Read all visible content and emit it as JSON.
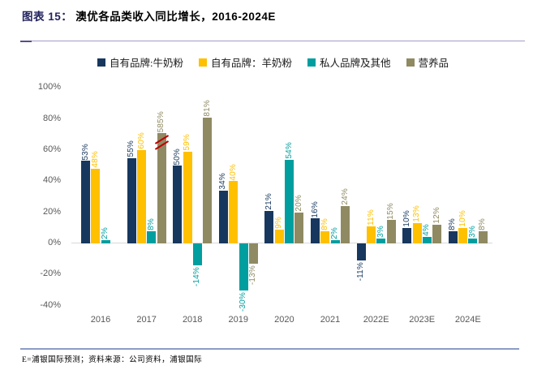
{
  "title": {
    "prefix": "图表 15：",
    "text": "澳优各品类收入同比增长，2016-2024E"
  },
  "legend": [
    {
      "label": "自有品牌:牛奶粉",
      "color": "#17375E"
    },
    {
      "label": "自有品牌：羊奶粉",
      "color": "#FFC000"
    },
    {
      "label": "私人品牌及其他",
      "color": "#009E9E"
    },
    {
      "label": "营养品",
      "color": "#8F8A62"
    }
  ],
  "chart_data": {
    "type": "bar",
    "title": "澳优各品类收入同比增长，2016-2024E",
    "unit": "percent",
    "categories": [
      "2016",
      "2017",
      "2018",
      "2019",
      "2020",
      "2021",
      "2022E",
      "2023E",
      "2024E"
    ],
    "series": [
      {
        "name": "自有品牌:牛奶粉",
        "color": "#17375E",
        "values": [
          53,
          55,
          50,
          34,
          21,
          16,
          -11,
          10,
          8
        ]
      },
      {
        "name": "自有品牌：羊奶粉",
        "color": "#FFC000",
        "values": [
          48,
          60,
          59,
          40,
          9,
          8,
          11,
          13,
          10
        ]
      },
      {
        "name": "私人品牌及其他",
        "color": "#009E9E",
        "values": [
          2,
          8,
          -14,
          -30,
          54,
          2,
          3,
          4,
          3
        ]
      },
      {
        "name": "营养品",
        "color": "#8F8A62",
        "values": [
          null,
          585,
          81,
          -13,
          20,
          24,
          15,
          12,
          8
        ]
      }
    ],
    "yticks": [
      100,
      80,
      60,
      40,
      20,
      0,
      -20,
      -40
    ],
    "ylim": [
      -40,
      100
    ],
    "grid": false,
    "legend_position": "top",
    "axis_break": {
      "series_index": 3,
      "category_index": 1,
      "actual_value": 585,
      "display_value": 71,
      "mark_color": "#C00000"
    }
  },
  "footer": {
    "source": "E=浦银国际预测；资料来源：公司资料，浦银国际"
  }
}
